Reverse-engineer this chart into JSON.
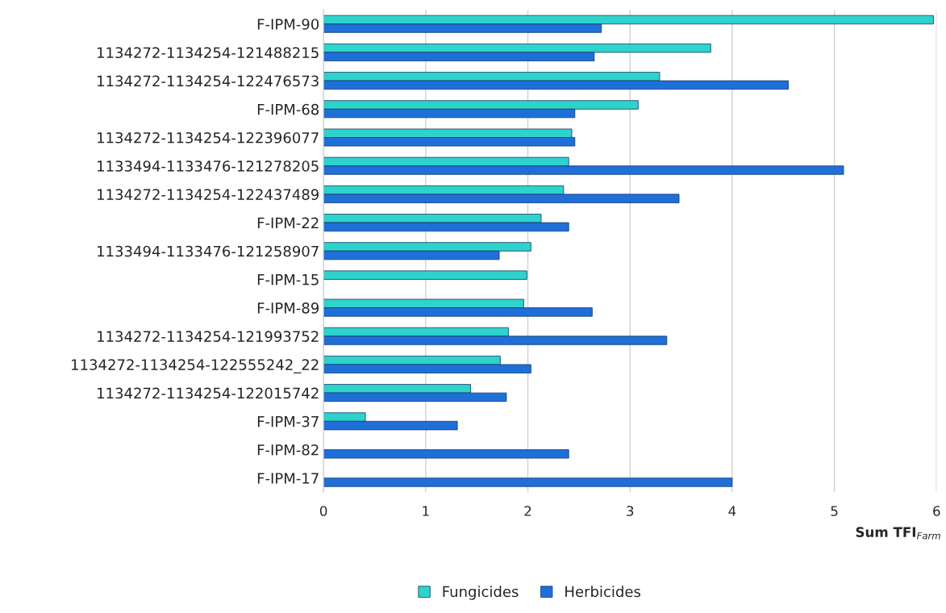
{
  "chart_data": {
    "type": "bar",
    "orientation": "horizontal",
    "xlabel": "Sum TFI$_{Farm}$",
    "categories": [
      "F-IPM-90",
      "1134272-1134254-121488215",
      "1134272-1134254-122476573",
      "F-IPM-68",
      "1134272-1134254-122396077",
      "1133494-1133476-121278205",
      "1134272-1134254-122437489",
      "F-IPM-22",
      "1133494-1133476-121258907",
      "F-IPM-15",
      "F-IPM-89",
      "1134272-1134254-121993752",
      "1134272-1134254-122555242_22",
      "1134272-1134254-122015742",
      "F-IPM-37",
      "F-IPM-82",
      "F-IPM-17"
    ],
    "series": [
      {
        "name": "Fungicides",
        "color": "#2ed3cb",
        "values": [
          5.97,
          3.79,
          3.29,
          3.08,
          2.43,
          2.4,
          2.35,
          2.13,
          2.03,
          1.99,
          1.96,
          1.81,
          1.73,
          1.44,
          0.41,
          null,
          null
        ]
      },
      {
        "name": "Herbicides",
        "color": "#1f6fd8",
        "values": [
          2.72,
          2.65,
          4.55,
          2.46,
          2.46,
          5.09,
          3.48,
          2.4,
          1.72,
          null,
          2.63,
          3.36,
          2.03,
          1.79,
          1.31,
          2.4,
          4.0
        ]
      }
    ],
    "xlim": [
      0,
      6
    ],
    "xticks": [
      0,
      1,
      2,
      3,
      4,
      5,
      6
    ],
    "grid": "x",
    "legend": "bottom"
  }
}
